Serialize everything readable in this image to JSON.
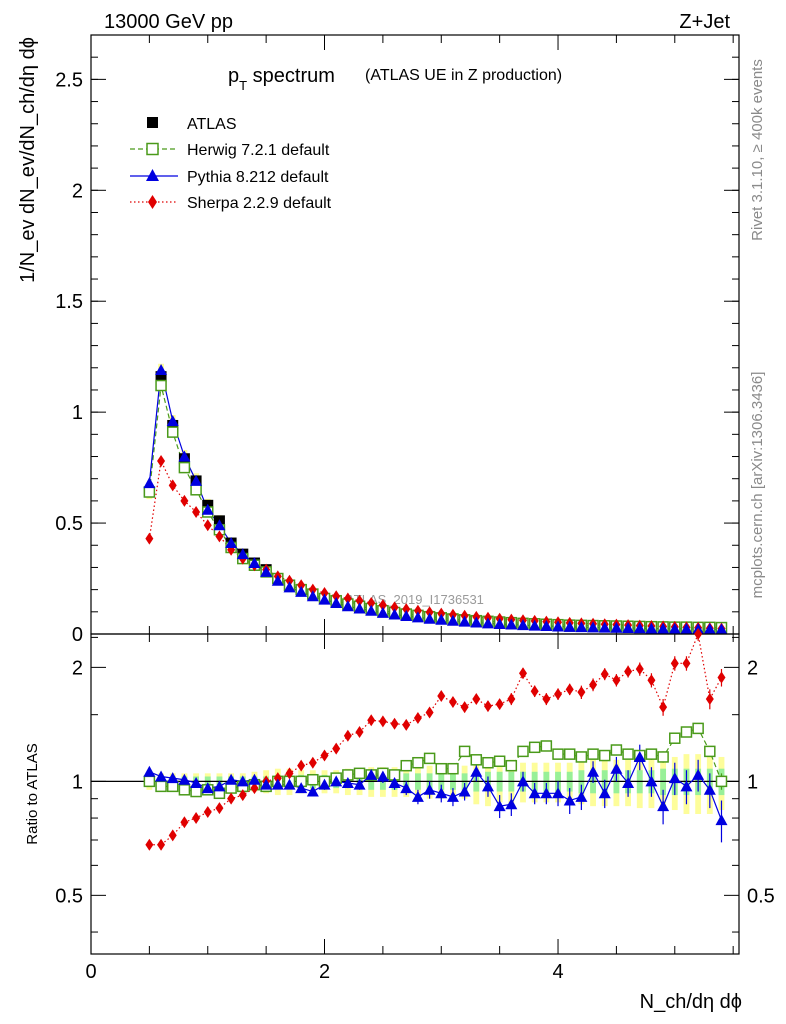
{
  "header": {
    "left": "13000 GeV pp",
    "right": "Z+Jet"
  },
  "title": {
    "pt_main": "p",
    "pt_sub": "T",
    "rest": " spectrum",
    "paren": "(ATLAS UE in Z production)"
  },
  "side": {
    "rivet": "Rivet 3.1.10, ≥ 400k events",
    "mcplots": "mcplots.cern.ch [arXiv:1306.3436]"
  },
  "watermark": "ATLAS_2019_I1736531",
  "axes": {
    "ylabel_main": "1/N_ev dN_ev/dN_ch/dη dϕ",
    "ylabel_ratio": "Ratio to ATLAS",
    "xlabel": "N_ch/dη dϕ",
    "xticks": [
      "0",
      "2",
      "4"
    ],
    "yticks_main": [
      "0",
      "0.5",
      "1",
      "1.5",
      "2",
      "2.5"
    ],
    "yticks_ratio": [
      "0.5",
      "1",
      "2"
    ]
  },
  "legend": [
    {
      "label": "ATLAS",
      "color": "#000000",
      "marker": "filled-square"
    },
    {
      "label": "Herwig 7.2.1 default",
      "color": "#4a9a1a",
      "marker": "open-square"
    },
    {
      "label": "Pythia 8.212 default",
      "color": "#0000e0",
      "marker": "filled-triangle"
    },
    {
      "label": "Sherpa 2.2.9 default",
      "color": "#e00000",
      "marker": "filled-diamond"
    }
  ],
  "chart_data": {
    "type": "line",
    "title": "pT spectrum (ATLAS UE in Z production)",
    "xlabel": "N_ch/dη dϕ",
    "ylabel": "1/N_ev dN_ev/dN_ch/dη dϕ",
    "xlim": [
      0,
      5.55
    ],
    "ylim": [
      0,
      2.7
    ],
    "ratio_ylim": [
      0.35,
      2.45
    ],
    "x": [
      0.5,
      0.6,
      0.7,
      0.8,
      0.9,
      1.0,
      1.1,
      1.2,
      1.3,
      1.4,
      1.5,
      1.6,
      1.7,
      1.8,
      1.9,
      2.0,
      2.1,
      2.2,
      2.3,
      2.4,
      2.5,
      2.6,
      2.7,
      2.8,
      2.9,
      3.0,
      3.1,
      3.2,
      3.3,
      3.4,
      3.5,
      3.6,
      3.7,
      3.8,
      3.9,
      4.0,
      4.1,
      4.2,
      4.3,
      4.4,
      4.5,
      4.6,
      4.7,
      4.8,
      4.9,
      5.0,
      5.1,
      5.2,
      5.3,
      5.4
    ],
    "series": [
      {
        "name": "ATLAS",
        "values": [
          0.64,
          1.16,
          0.94,
          0.79,
          0.69,
          0.58,
          0.51,
          0.41,
          0.36,
          0.32,
          0.29,
          0.25,
          0.22,
          0.2,
          0.18,
          0.16,
          0.145,
          0.13,
          0.12,
          0.11,
          0.1,
          0.093,
          0.086,
          0.08,
          0.074,
          0.069,
          0.064,
          0.059,
          0.055,
          0.052,
          0.049,
          0.046,
          0.043,
          0.041,
          0.039,
          0.037,
          0.035,
          0.034,
          0.033,
          0.032,
          0.031,
          0.03,
          0.029,
          0.028,
          0.027,
          0.026,
          0.026,
          0.025,
          0.025,
          0.024
        ]
      },
      {
        "name": "Herwig 7.2.1 default",
        "values": [
          0.64,
          1.12,
          0.91,
          0.75,
          0.65,
          0.55,
          0.47,
          0.39,
          0.34,
          0.31,
          0.28,
          0.25,
          0.22,
          0.2,
          0.18,
          0.16,
          0.15,
          0.135,
          0.125,
          0.115,
          0.105,
          0.097,
          0.09,
          0.084,
          0.078,
          0.073,
          0.068,
          0.064,
          0.06,
          0.057,
          0.054,
          0.051,
          0.048,
          0.046,
          0.044,
          0.042,
          0.04,
          0.039,
          0.038,
          0.037,
          0.036,
          0.035,
          0.034,
          0.033,
          0.032,
          0.031,
          0.031,
          0.03,
          0.03,
          0.029
        ]
      },
      {
        "name": "Pythia 8.212 default",
        "values": [
          0.68,
          1.19,
          0.96,
          0.8,
          0.69,
          0.56,
          0.49,
          0.41,
          0.36,
          0.32,
          0.28,
          0.24,
          0.21,
          0.19,
          0.17,
          0.155,
          0.14,
          0.125,
          0.115,
          0.105,
          0.095,
          0.088,
          0.081,
          0.075,
          0.069,
          0.064,
          0.06,
          0.056,
          0.052,
          0.048,
          0.045,
          0.043,
          0.04,
          0.038,
          0.036,
          0.034,
          0.032,
          0.031,
          0.03,
          0.029,
          0.028,
          0.027,
          0.026,
          0.025,
          0.024,
          0.023,
          0.023,
          0.022,
          0.022,
          0.021
        ]
      },
      {
        "name": "Sherpa 2.2.9 default",
        "values": [
          0.43,
          0.78,
          0.67,
          0.6,
          0.55,
          0.49,
          0.44,
          0.38,
          0.34,
          0.31,
          0.29,
          0.26,
          0.24,
          0.22,
          0.2,
          0.185,
          0.17,
          0.16,
          0.15,
          0.14,
          0.13,
          0.12,
          0.112,
          0.105,
          0.098,
          0.092,
          0.087,
          0.082,
          0.077,
          0.073,
          0.069,
          0.065,
          0.062,
          0.059,
          0.056,
          0.053,
          0.05,
          0.048,
          0.046,
          0.044,
          0.042,
          0.04,
          0.038,
          0.036,
          0.034,
          0.032,
          0.03,
          0.028,
          0.026,
          0.024
        ]
      }
    ],
    "ratio": {
      "ylabel": "Ratio to ATLAS",
      "band_halfwidth_green": [
        0.03,
        0.03,
        0.03,
        0.03,
        0.03,
        0.03,
        0.03,
        0.03,
        0.03,
        0.03,
        0.03,
        0.04,
        0.04,
        0.04,
        0.04,
        0.04,
        0.04,
        0.04,
        0.04,
        0.05,
        0.05,
        0.05,
        0.05,
        0.05,
        0.05,
        0.05,
        0.05,
        0.05,
        0.06,
        0.06,
        0.06,
        0.06,
        0.06,
        0.06,
        0.06,
        0.06,
        0.06,
        0.07,
        0.07,
        0.07,
        0.07,
        0.07,
        0.07,
        0.07,
        0.08,
        0.08,
        0.08,
        0.08,
        0.08,
        0.08
      ],
      "band_halfwidth_yellow": [
        0.05,
        0.05,
        0.05,
        0.05,
        0.05,
        0.05,
        0.05,
        0.05,
        0.05,
        0.06,
        0.07,
        0.08,
        0.08,
        0.07,
        0.07,
        0.07,
        0.07,
        0.08,
        0.08,
        0.09,
        0.09,
        0.09,
        0.09,
        0.1,
        0.1,
        0.1,
        0.1,
        0.1,
        0.13,
        0.14,
        0.12,
        0.14,
        0.12,
        0.12,
        0.12,
        0.12,
        0.12,
        0.13,
        0.14,
        0.14,
        0.14,
        0.14,
        0.15,
        0.15,
        0.15,
        0.16,
        0.18,
        0.18,
        0.18,
        0.16
      ],
      "series": [
        {
          "name": "Herwig 7.2.1 default",
          "values": [
            1.0,
            0.97,
            0.97,
            0.95,
            0.94,
            0.95,
            0.93,
            0.96,
            0.97,
            0.98,
            0.97,
            1.0,
            1.0,
            1.0,
            1.01,
            1.0,
            1.02,
            1.04,
            1.05,
            1.04,
            1.05,
            1.04,
            1.1,
            1.12,
            1.15,
            1.08,
            1.08,
            1.2,
            1.14,
            1.12,
            1.13,
            1.1,
            1.2,
            1.23,
            1.24,
            1.18,
            1.18,
            1.16,
            1.18,
            1.17,
            1.21,
            1.18,
            1.17,
            1.18,
            1.16,
            1.3,
            1.35,
            1.38,
            1.2,
            1.0
          ],
          "errors": [
            0.02,
            0.02,
            0.02,
            0.02,
            0.02,
            0.02,
            0.02,
            0.02,
            0.02,
            0.02,
            0.02,
            0.02,
            0.02,
            0.02,
            0.02,
            0.02,
            0.02,
            0.02,
            0.03,
            0.03,
            0.03,
            0.03,
            0.03,
            0.03,
            0.03,
            0.03,
            0.03,
            0.03,
            0.03,
            0.03,
            0.03,
            0.03,
            0.03,
            0.03,
            0.03,
            0.03,
            0.03,
            0.03,
            0.03,
            0.03,
            0.03,
            0.03,
            0.03,
            0.04,
            0.04,
            0.04,
            0.04,
            0.04,
            0.04,
            0.05
          ]
        },
        {
          "name": "Pythia 8.212 default",
          "values": [
            1.06,
            1.03,
            1.02,
            1.01,
            0.99,
            0.96,
            0.97,
            1.01,
            1.0,
            1.01,
            0.98,
            0.98,
            0.98,
            0.96,
            0.94,
            0.98,
            1.0,
            0.99,
            0.98,
            1.04,
            1.03,
            0.99,
            0.96,
            0.91,
            0.95,
            0.93,
            0.91,
            0.94,
            1.06,
            0.97,
            0.86,
            0.87,
            1.0,
            0.93,
            0.93,
            0.93,
            0.89,
            0.91,
            1.06,
            0.93,
            1.08,
            0.99,
            1.16,
            1.0,
            0.86,
            1.02,
            0.97,
            1.04,
            0.95,
            0.79
          ],
          "errors": [
            0.02,
            0.02,
            0.02,
            0.02,
            0.02,
            0.02,
            0.02,
            0.02,
            0.02,
            0.02,
            0.02,
            0.02,
            0.02,
            0.02,
            0.02,
            0.03,
            0.03,
            0.03,
            0.03,
            0.03,
            0.04,
            0.04,
            0.04,
            0.04,
            0.05,
            0.05,
            0.05,
            0.05,
            0.06,
            0.06,
            0.06,
            0.06,
            0.06,
            0.06,
            0.06,
            0.07,
            0.07,
            0.07,
            0.07,
            0.08,
            0.08,
            0.08,
            0.09,
            0.09,
            0.09,
            0.1,
            0.1,
            0.1,
            0.1,
            0.1
          ]
        },
        {
          "name": "Sherpa 2.2.9 default",
          "values": [
            0.68,
            0.68,
            0.72,
            0.78,
            0.8,
            0.83,
            0.85,
            0.9,
            0.92,
            0.96,
            1.0,
            1.02,
            1.05,
            1.1,
            1.12,
            1.17,
            1.22,
            1.32,
            1.35,
            1.45,
            1.44,
            1.42,
            1.41,
            1.47,
            1.52,
            1.68,
            1.62,
            1.57,
            1.65,
            1.58,
            1.6,
            1.65,
            1.93,
            1.73,
            1.65,
            1.7,
            1.75,
            1.72,
            1.8,
            1.92,
            1.85,
            1.95,
            1.98,
            1.85,
            1.57,
            2.05,
            2.05,
            2.45,
            1.65,
            1.88
          ],
          "errors": [
            0.02,
            0.02,
            0.02,
            0.02,
            0.02,
            0.02,
            0.02,
            0.02,
            0.02,
            0.02,
            0.02,
            0.02,
            0.02,
            0.02,
            0.03,
            0.03,
            0.03,
            0.03,
            0.03,
            0.03,
            0.04,
            0.04,
            0.04,
            0.04,
            0.04,
            0.05,
            0.05,
            0.05,
            0.05,
            0.05,
            0.05,
            0.06,
            0.06,
            0.06,
            0.06,
            0.06,
            0.06,
            0.07,
            0.07,
            0.07,
            0.07,
            0.07,
            0.08,
            0.08,
            0.08,
            0.09,
            0.09,
            0.1,
            0.1,
            0.1
          ]
        }
      ]
    }
  }
}
